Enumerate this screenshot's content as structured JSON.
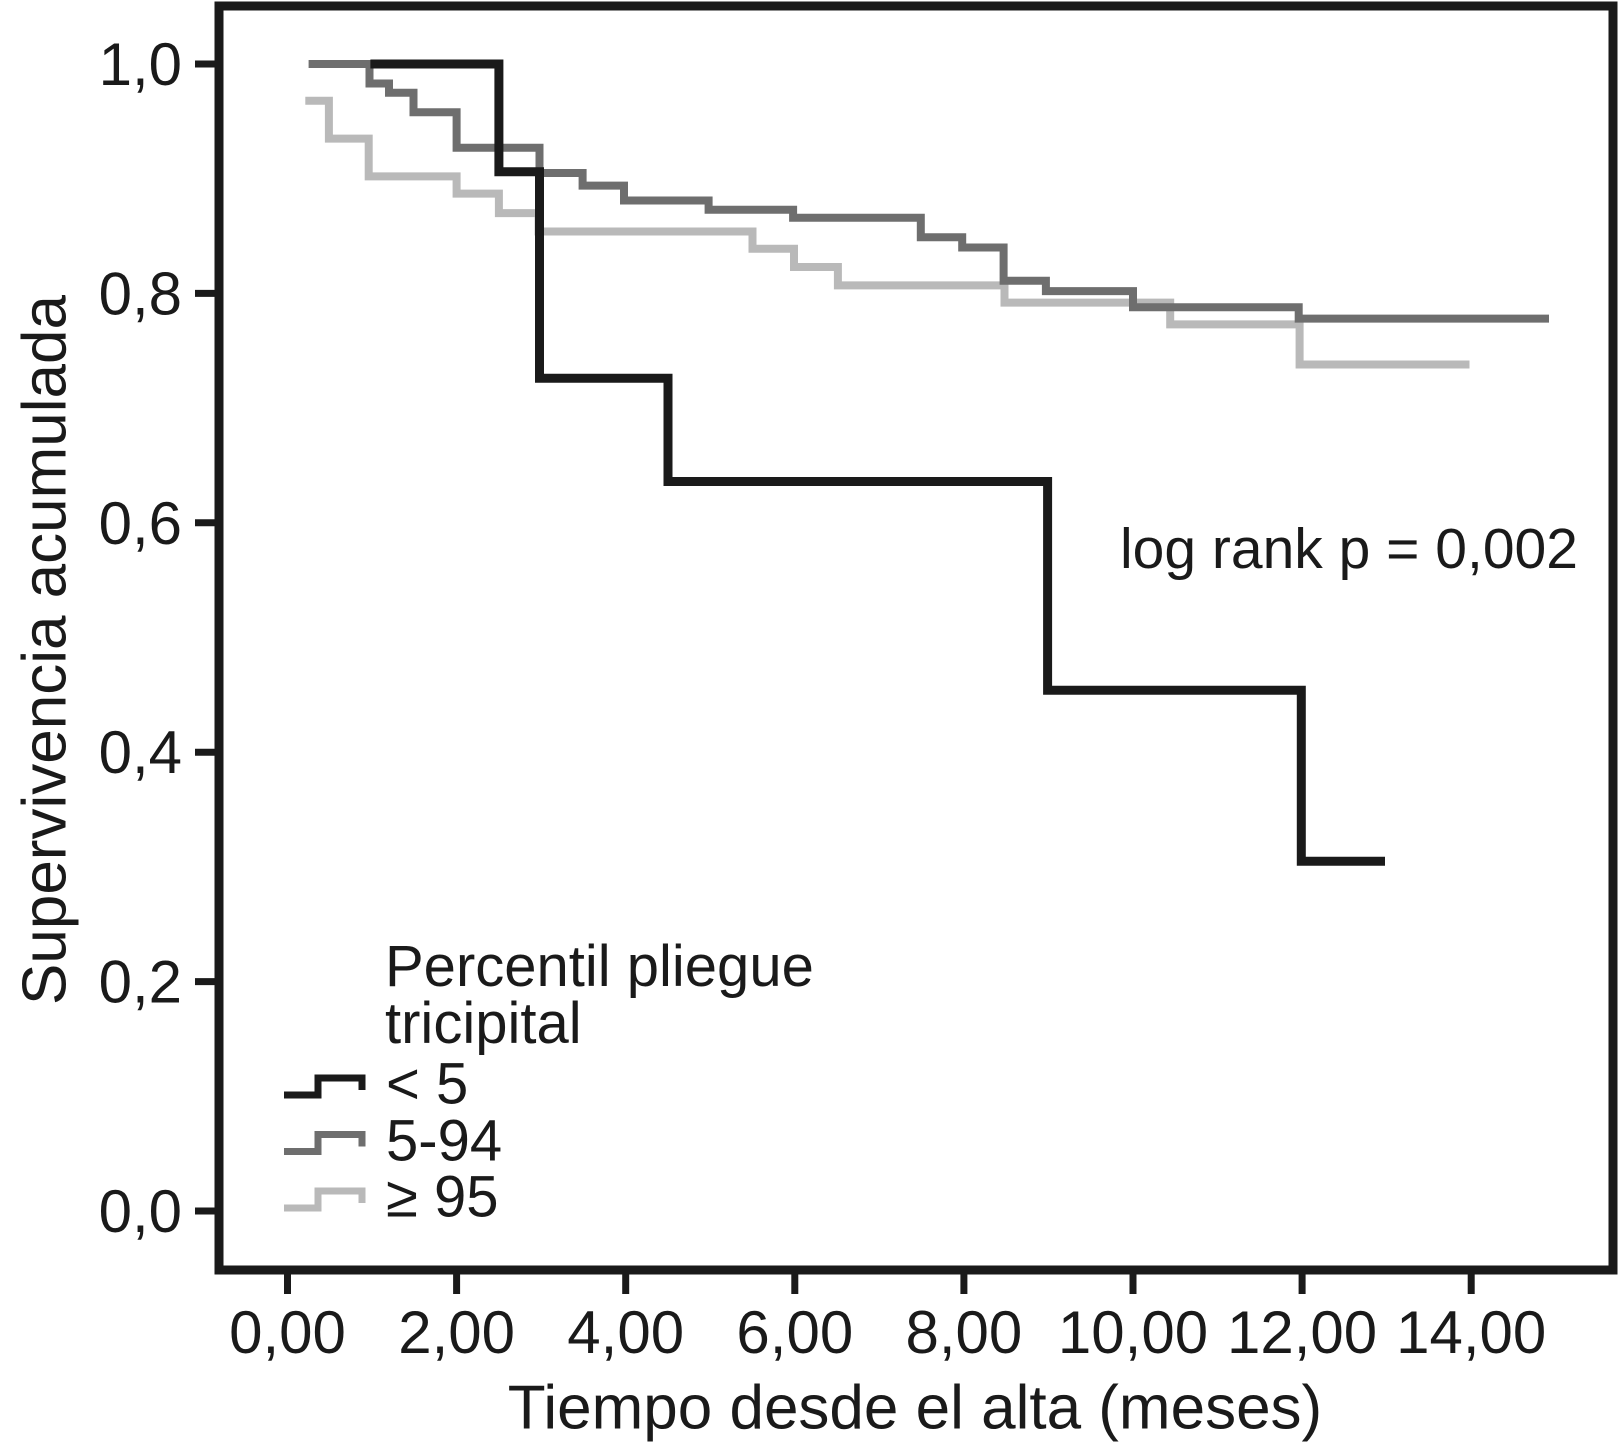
{
  "chart_data": {
    "type": "line",
    "subtype": "kaplan-meier-step-survival",
    "title": "",
    "xlabel": "Tiempo desde el alta (meses)",
    "ylabel": "Supervivencia acumulada",
    "annotation": "log rank p = 0,002",
    "grid": false,
    "xlim": [
      -0.82,
      15.7
    ],
    "ylim": [
      -0.05,
      1.05
    ],
    "x_ticks": {
      "values": [
        0,
        2,
        4,
        6,
        8,
        10,
        12,
        14
      ],
      "labels": [
        "0,00",
        "2,00",
        "4,00",
        "6,00",
        "8,00",
        "10,00",
        "12,00",
        "14,00"
      ]
    },
    "y_ticks": {
      "values": [
        1.0,
        0.8,
        0.6,
        0.4,
        0.2,
        0.0
      ],
      "labels": [
        "1,0",
        "0,8",
        "0,6",
        "0,4",
        "0,2",
        "0,0"
      ]
    },
    "legend": {
      "position": "lower-left-inside",
      "title_lines": [
        "Percentil pliegue",
        "tricipital"
      ]
    },
    "series": [
      {
        "key": "lt5",
        "name": "< 5",
        "color": "#1a1a1a",
        "width": 9,
        "points": [
          [
            0.98,
            1.0
          ],
          [
            2.5,
            0.906
          ],
          [
            2.98,
            0.726
          ],
          [
            4.5,
            0.636
          ],
          [
            8.99,
            0.454
          ],
          [
            11.99,
            0.305
          ]
        ],
        "end_t": 12.98
      },
      {
        "key": "p5to94",
        "name": "5-94",
        "color": "#6e6e6e",
        "width": 8,
        "points": [
          [
            0.25,
            1.0
          ],
          [
            0.97,
            0.983
          ],
          [
            1.2,
            0.975
          ],
          [
            1.49,
            0.958
          ],
          [
            2.0,
            0.927
          ],
          [
            2.98,
            0.905
          ],
          [
            3.49,
            0.894
          ],
          [
            3.98,
            0.881
          ],
          [
            4.98,
            0.873
          ],
          [
            5.98,
            0.866
          ],
          [
            7.49,
            0.849
          ],
          [
            7.98,
            0.84
          ],
          [
            8.47,
            0.811
          ],
          [
            8.97,
            0.802
          ],
          [
            10.0,
            0.788
          ],
          [
            11.96,
            0.778
          ]
        ],
        "end_t": 14.92
      },
      {
        "key": "ge95",
        "name": "≥ 95",
        "color": "#b9b9b9",
        "width": 8,
        "points": [
          [
            0.21,
            0.968
          ],
          [
            0.49,
            0.935
          ],
          [
            0.96,
            0.902
          ],
          [
            2.0,
            0.887
          ],
          [
            2.5,
            0.87
          ],
          [
            2.97,
            0.854
          ],
          [
            5.5,
            0.839
          ],
          [
            5.99,
            0.823
          ],
          [
            6.51,
            0.807
          ],
          [
            8.48,
            0.792
          ],
          [
            10.44,
            0.773
          ],
          [
            11.97,
            0.738
          ]
        ],
        "end_t": 13.98
      }
    ]
  }
}
